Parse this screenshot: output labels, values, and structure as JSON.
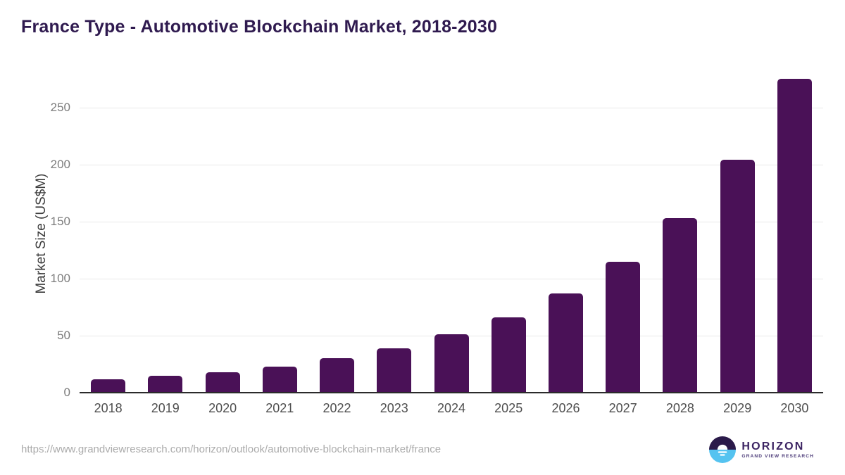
{
  "chart_data": {
    "type": "bar",
    "title": "France Type - Automotive Blockchain Market, 2018-2030",
    "categories": [
      "2018",
      "2019",
      "2020",
      "2021",
      "2022",
      "2023",
      "2024",
      "2025",
      "2026",
      "2027",
      "2028",
      "2029",
      "2030"
    ],
    "values": [
      12,
      15,
      18,
      23,
      30,
      39,
      51,
      66,
      87,
      115,
      153,
      204,
      275
    ],
    "xlabel": "",
    "ylabel": "Market Size (US$M)",
    "ylim": [
      0,
      280
    ],
    "yticks": [
      0,
      50,
      100,
      150,
      200,
      250
    ],
    "grid": "horizontal-only",
    "legend": "none",
    "bar_color": "#4a1157"
  },
  "footer": {
    "source_url": "https://www.grandviewresearch.com/horizon/outlook/automotive-blockchain-market/france",
    "logo_text": "HORIZON",
    "logo_subtext": "GRAND VIEW RESEARCH",
    "logo_colors": {
      "dark": "#2b1a4a",
      "light_blue": "#55c3f0",
      "sun": "#ffffff"
    }
  }
}
